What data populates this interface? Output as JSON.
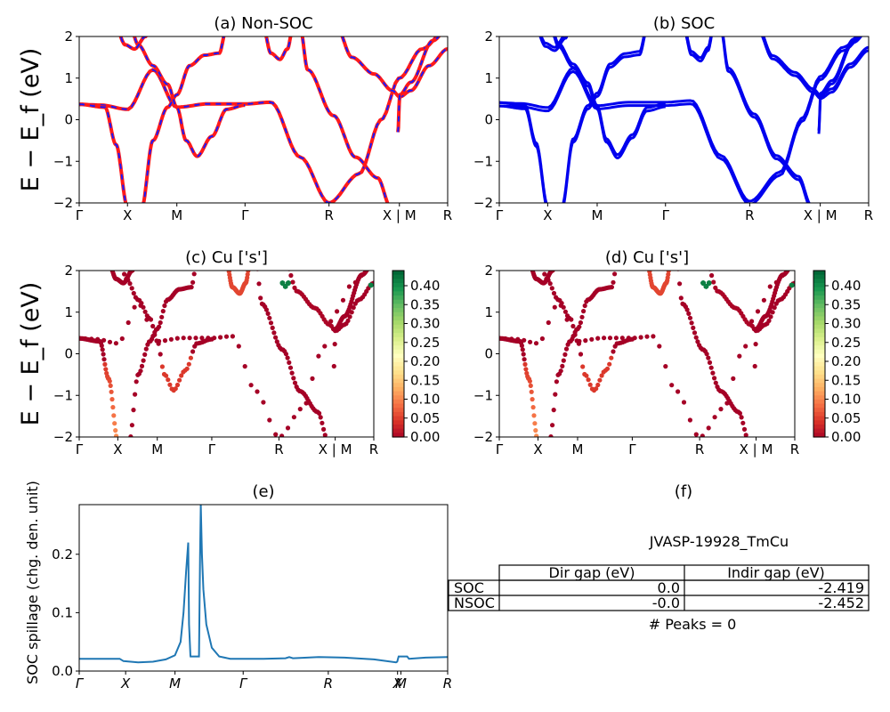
{
  "chart_data": [
    {
      "id": "a",
      "type": "line",
      "title": "(a) Non-SOC",
      "ylabel": "E − E_f (eV)",
      "ylim": [
        -2,
        2
      ],
      "yticks": [
        "2",
        "1",
        "0",
        "−1",
        "−2"
      ],
      "kpath": [
        "Γ",
        "X",
        "M",
        "Γ",
        "R",
        "X | M",
        "R"
      ],
      "kpos": [
        0,
        0.131,
        0.265,
        0.45,
        0.678,
        0.869,
        1.0
      ],
      "series": [
        {
          "color": "#ff1a1a",
          "style": "solid",
          "bands": "nonsoc"
        },
        {
          "color": "#1a1aff",
          "style": "dashed",
          "bands": "nonsoc"
        }
      ]
    },
    {
      "id": "b",
      "type": "line",
      "title": "(b) SOC",
      "ylim": [
        -2,
        2
      ],
      "yticks": [
        "2",
        "1",
        "0",
        "−1",
        "−2"
      ],
      "kpath": [
        "Γ",
        "X",
        "M",
        "Γ",
        "R",
        "X | M",
        "R"
      ],
      "kpos": [
        0,
        0.131,
        0.265,
        0.45,
        0.678,
        0.869,
        1.0
      ],
      "series": [
        {
          "color": "#0000ee",
          "style": "solid",
          "bands": "soc"
        }
      ]
    },
    {
      "id": "c",
      "type": "scatter",
      "title": "(c)  Cu ['s']",
      "ylabel": "E − E_f (eV)",
      "ylim": [
        -2,
        2
      ],
      "yticks": [
        "2",
        "1",
        "0",
        "−1",
        "−2"
      ],
      "kpath": [
        "Γ",
        "X",
        "M",
        "Γ",
        "R",
        "X | M",
        "R"
      ],
      "kpos": [
        0,
        0.131,
        0.265,
        0.45,
        0.678,
        0.869,
        1.0
      ],
      "colorbar": {
        "min": 0.0,
        "max": 0.44,
        "ticks": [
          "0.40",
          "0.35",
          "0.30",
          "0.25",
          "0.20",
          "0.15",
          "0.10",
          "0.05",
          "0.00"
        ],
        "cmap": "RdYlGn"
      }
    },
    {
      "id": "d",
      "type": "scatter",
      "title": "(d) Cu ['s']",
      "ylim": [
        -2,
        2
      ],
      "yticks": [
        "2",
        "1",
        "0",
        "−1",
        "−2"
      ],
      "kpath": [
        "Γ",
        "X",
        "M",
        "Γ",
        "R",
        "X | M",
        "R"
      ],
      "kpos": [
        0,
        0.131,
        0.265,
        0.45,
        0.678,
        0.869,
        1.0
      ],
      "colorbar": {
        "min": 0.0,
        "max": 0.44,
        "ticks": [
          "0.40",
          "0.35",
          "0.30",
          "0.25",
          "0.20",
          "0.15",
          "0.10",
          "0.05",
          "0.00"
        ],
        "cmap": "RdYlGn"
      }
    },
    {
      "id": "e",
      "type": "line",
      "title": "(e)",
      "ylabel": "SOC spillage (chg. den. unit)",
      "ylim": [
        0,
        0.285
      ],
      "yticks": [
        "0.2",
        "0.1",
        "0.0"
      ],
      "kpath": [
        "Γ",
        "X",
        "M",
        "Γ",
        "R",
        "X",
        "M",
        "R"
      ],
      "kpos": [
        0,
        0.126,
        0.26,
        0.445,
        0.676,
        0.864,
        0.873,
        1.0
      ],
      "series": [
        {
          "color": "#1f77b4",
          "points": [
            [
              0,
              0.021
            ],
            [
              0.05,
              0.021
            ],
            [
              0.11,
              0.021
            ],
            [
              0.12,
              0.017
            ],
            [
              0.16,
              0.015
            ],
            [
              0.2,
              0.016
            ],
            [
              0.235,
              0.02
            ],
            [
              0.26,
              0.027
            ],
            [
              0.275,
              0.05
            ],
            [
              0.283,
              0.1
            ],
            [
              0.29,
              0.17
            ],
            [
              0.296,
              0.22
            ],
            [
              0.298,
              0.08
            ],
            [
              0.302,
              0.025
            ],
            [
              0.3,
              0.025
            ],
            [
              0.325,
              0.025
            ],
            [
              0.328,
              0.2
            ],
            [
              0.33,
              0.285
            ],
            [
              0.333,
              0.2
            ],
            [
              0.337,
              0.14
            ],
            [
              0.345,
              0.08
            ],
            [
              0.36,
              0.04
            ],
            [
              0.38,
              0.025
            ],
            [
              0.41,
              0.021
            ],
            [
              0.445,
              0.021
            ],
            [
              0.5,
              0.021
            ],
            [
              0.56,
              0.022
            ],
            [
              0.57,
              0.024
            ],
            [
              0.58,
              0.022
            ],
            [
              0.65,
              0.024
            ],
            [
              0.72,
              0.023
            ],
            [
              0.8,
              0.02
            ],
            [
              0.86,
              0.015
            ],
            [
              0.863,
              0.016
            ],
            [
              0.867,
              0.025
            ],
            [
              0.89,
              0.025
            ],
            [
              0.895,
              0.021
            ],
            [
              0.94,
              0.023
            ],
            [
              1.0,
              0.024
            ]
          ]
        }
      ]
    }
  ],
  "info_panel": {
    "title": "(f)",
    "subtitle": "JVASP-19928_TmCu",
    "table": {
      "columns": [
        "Dir gap (eV)",
        "Indir gap (eV)"
      ],
      "rows": [
        {
          "label": "SOC",
          "values": [
            "0.0",
            "-2.419"
          ]
        },
        {
          "label": "NSOC",
          "values": [
            "-0.0",
            "-2.452"
          ]
        }
      ]
    },
    "footer": "# Peaks = 0"
  }
}
